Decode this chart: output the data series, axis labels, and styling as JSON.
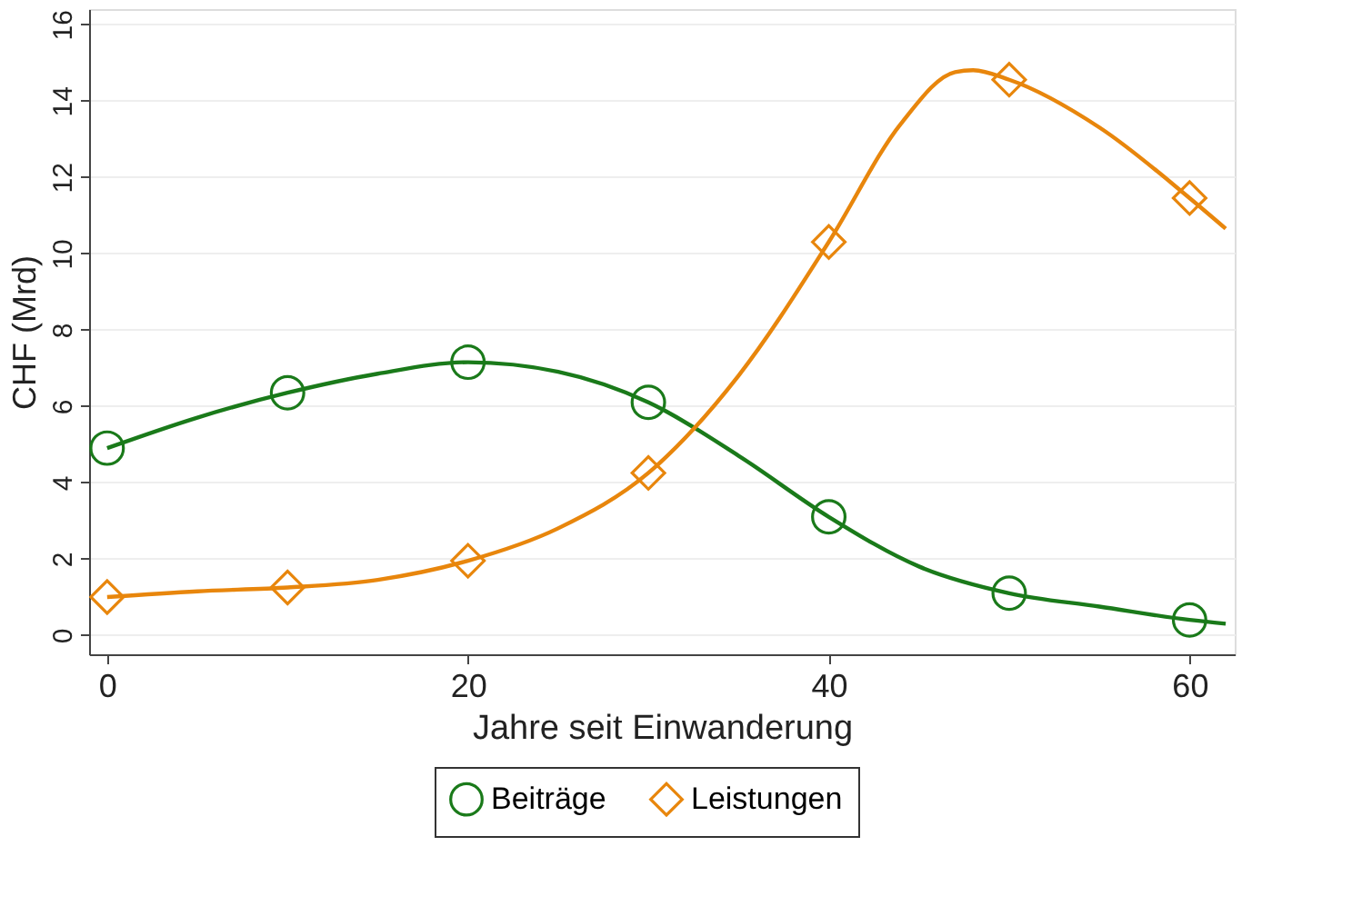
{
  "chart_data": {
    "type": "scatter",
    "xlabel": "Jahre seit Einwanderung",
    "ylabel": "CHF (Mrd)",
    "x": [
      0,
      10,
      20,
      30,
      40,
      50,
      60
    ],
    "series": [
      {
        "name": "Beiträge",
        "color": "#1a7a1a",
        "marker": "circle",
        "values": [
          4.9,
          6.35,
          7.15,
          6.1,
          3.1,
          1.1,
          0.4
        ]
      },
      {
        "name": "Leistungen",
        "color": "#e8860c",
        "marker": "diamond",
        "values": [
          1.0,
          1.25,
          1.95,
          4.25,
          10.3,
          14.55,
          11.45
        ]
      },
      {
        "type": "line",
        "color": "#1a7a1a",
        "marker": "none",
        "x": [
          0,
          5,
          10,
          15,
          20,
          25,
          30,
          35,
          40,
          45,
          50,
          55,
          60,
          62
        ],
        "values": [
          4.9,
          5.7,
          6.35,
          6.85,
          7.15,
          6.9,
          6.1,
          4.7,
          3.1,
          1.8,
          1.1,
          0.75,
          0.4,
          0.3
        ]
      },
      {
        "type": "line",
        "color": "#e8860c",
        "marker": "none",
        "x": [
          0,
          5,
          10,
          15,
          20,
          25,
          30,
          35,
          40,
          44,
          47,
          48,
          50,
          55,
          60,
          62
        ],
        "values": [
          1.0,
          1.15,
          1.25,
          1.45,
          1.95,
          2.8,
          4.25,
          6.8,
          10.3,
          13.4,
          14.75,
          14.8,
          14.55,
          13.3,
          11.45,
          10.65
        ]
      }
    ],
    "xlim": [
      -1,
      62.5
    ],
    "xticks": [
      0,
      20,
      40,
      60
    ],
    "ylim": [
      -0.5,
      16.4
    ],
    "yticks": [
      0,
      2,
      4,
      6,
      8,
      10,
      12,
      14,
      16
    ],
    "grid": "y",
    "legend": "bottom",
    "line_style": "solid"
  }
}
